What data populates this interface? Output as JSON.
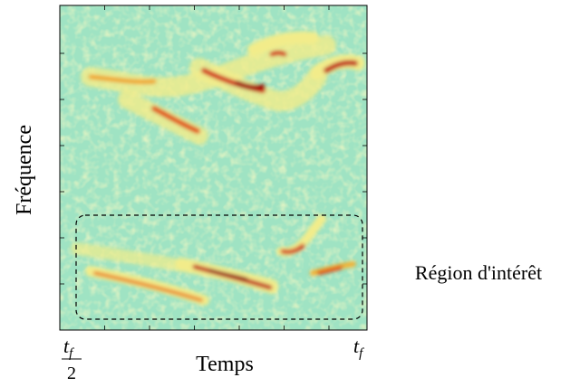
{
  "figure": {
    "y_label": "Fréquence",
    "x_label": "Temps",
    "annotation": "Région d'intérêt",
    "x_tick_labels": [
      {
        "base": "t",
        "sub": "f",
        "denominator": "2"
      },
      {
        "base": "t",
        "sub": "f"
      }
    ]
  }
}
